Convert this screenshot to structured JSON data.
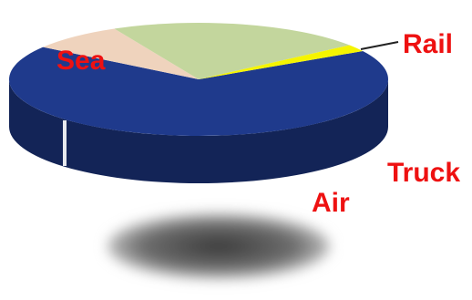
{
  "chart_data": {
    "type": "pie",
    "three_d": true,
    "title": "",
    "labels": [
      "Sea",
      "Rail",
      "Truck",
      "Air"
    ],
    "values": [
      68,
      8,
      22,
      2
    ],
    "value_unit": "percent (estimated from slice angles)",
    "legend": "none",
    "colors": {
      "Sea": "#1f3a8c",
      "Rail": "#efd3bd",
      "Truck": "#c3d69d",
      "Air": "#f5f400"
    },
    "label_color": "#ee1111"
  }
}
